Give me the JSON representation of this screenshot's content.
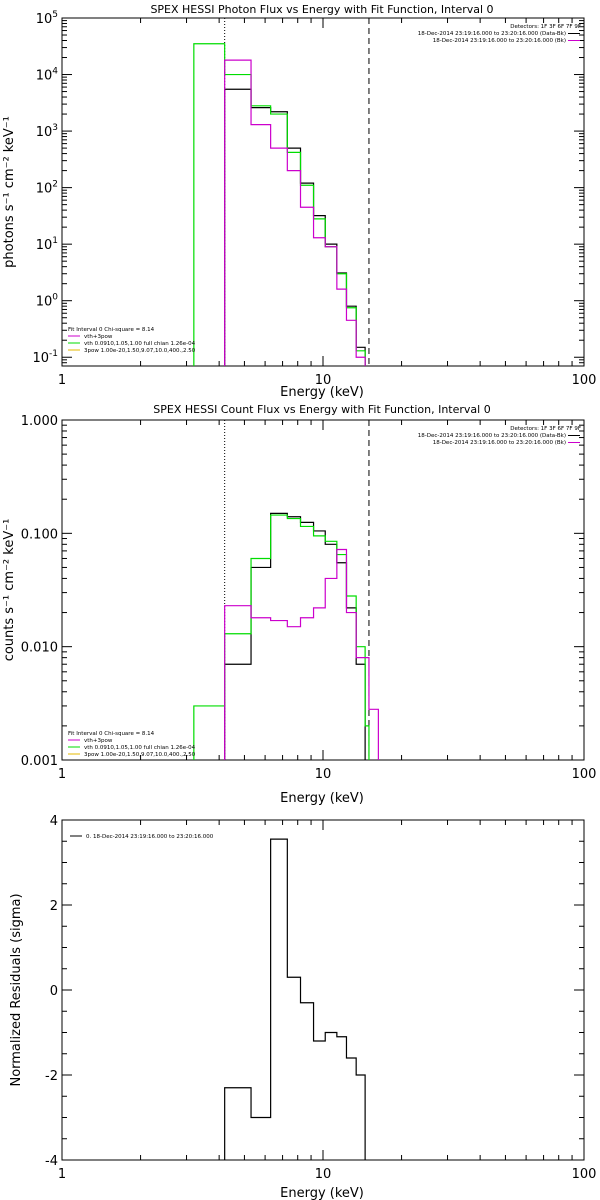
{
  "chart_data": [
    {
      "type": "line",
      "step": true,
      "title": "SPEX HESSI Photon Flux vs Energy with Fit Function, Interval 0",
      "xlabel": "Energy (keV)",
      "ylabel": "photons s⁻¹ cm⁻² keV⁻¹",
      "xscale": "log",
      "yscale": "log",
      "xlim": [
        1,
        100
      ],
      "ylim": [
        0.07,
        100000
      ],
      "xticks": [
        {
          "value": 1,
          "label": "1"
        },
        {
          "value": 10,
          "label": "10"
        },
        {
          "value": 100,
          "label": "100"
        }
      ],
      "yticks": [
        {
          "value": 0.1,
          "base": "10",
          "exp": "-1"
        },
        {
          "value": 1,
          "base": "10",
          "exp": "0"
        },
        {
          "value": 10,
          "base": "10",
          "exp": "1"
        },
        {
          "value": 100,
          "base": "10",
          "exp": "2"
        },
        {
          "value": 1000,
          "base": "10",
          "exp": "3"
        },
        {
          "value": 10000,
          "base": "10",
          "exp": "4"
        },
        {
          "value": 100000,
          "base": "10",
          "exp": "5"
        }
      ],
      "vlines": [
        {
          "x": 4.2,
          "style": "dotted"
        },
        {
          "x": 15.0,
          "style": "dashed"
        }
      ],
      "series": [
        {
          "color": "#000000",
          "edges": [
            4.2,
            5.3,
            6.3,
            7.3,
            8.2,
            9.2,
            10.2,
            11.3,
            12.3,
            13.4,
            14.5
          ],
          "values": [
            5500,
            2600,
            2200,
            500,
            120,
            32,
            10,
            3.1,
            0.8,
            0.15
          ]
        },
        {
          "color": "#00dd00",
          "edges": [
            3.2,
            4.2,
            5.3,
            6.3,
            7.3,
            8.2,
            9.2,
            10.2,
            11.3,
            12.3,
            13.4,
            14.5
          ],
          "values": [
            35000,
            10000,
            2800,
            2000,
            420,
            110,
            28,
            9,
            3,
            0.75,
            0.13
          ]
        },
        {
          "color": "#cc00cc",
          "edges": [
            4.2,
            5.3,
            6.3,
            7.3,
            8.2,
            9.2,
            10.2,
            11.3,
            12.3,
            13.4,
            14.5
          ],
          "values": [
            18000,
            1300,
            500,
            200,
            45,
            13,
            9,
            1.6,
            0.45,
            0.1
          ]
        }
      ],
      "info": {
        "line1": "Detectors: 1F 3F 6F 7F 9F",
        "line2": "18-Dec-2014 23:19:16.000 to 23:20:16.000 (Data-Bk)",
        "line3": "18-Dec-2014 23:19:16.000 to 23:20:16.000 (Bk)",
        "line2_color": "#000000",
        "line3_color": "#cc00cc"
      },
      "legend": {
        "header": "Fit Interval 0   Chi-square = 8.14",
        "items": [
          {
            "label": "vth+3pow",
            "color": "#cc00cc"
          },
          {
            "label": "vth 0.0910,1.05,1.00  full chian 1.26e-04",
            "color": "#00dd00"
          },
          {
            "label": "3pow 1.00e-20,1.50,9.07,10.0,400.,2.50",
            "color": "#e6b800"
          }
        ]
      }
    },
    {
      "type": "line",
      "step": true,
      "title": "SPEX HESSI Count Flux vs Energy with Fit Function, Interval 0",
      "xlabel": "Energy (keV)",
      "ylabel": "counts s⁻¹ cm⁻² keV⁻¹",
      "xscale": "log",
      "yscale": "log",
      "xlim": [
        1,
        100
      ],
      "ylim": [
        0.001,
        1.0
      ],
      "xticks": [
        {
          "value": 1,
          "label": "1"
        },
        {
          "value": 10,
          "label": "10"
        },
        {
          "value": 100,
          "label": "100"
        }
      ],
      "yticks": [
        {
          "value": 0.001,
          "label": "0.001"
        },
        {
          "value": 0.01,
          "label": "0.010"
        },
        {
          "value": 0.1,
          "label": "0.100"
        },
        {
          "value": 1.0,
          "label": "1.000"
        }
      ],
      "vlines": [
        {
          "x": 4.2,
          "style": "dotted"
        },
        {
          "x": 15.0,
          "style": "dashed"
        }
      ],
      "series": [
        {
          "color": "#000000",
          "edges": [
            4.2,
            5.3,
            6.3,
            7.3,
            8.2,
            9.2,
            10.2,
            11.3,
            12.3,
            13.4,
            14.5
          ],
          "values": [
            0.007,
            0.05,
            0.15,
            0.14,
            0.125,
            0.105,
            0.08,
            0.055,
            0.022,
            0.007
          ]
        },
        {
          "color": "#00dd00",
          "edges": [
            3.2,
            4.2,
            5.3,
            6.3,
            7.3,
            8.2,
            9.2,
            10.2,
            11.3,
            12.3,
            13.4,
            14.5,
            15.0
          ],
          "values": [
            0.003,
            0.013,
            0.06,
            0.145,
            0.135,
            0.115,
            0.095,
            0.085,
            0.065,
            0.028,
            0.01,
            0.002
          ]
        },
        {
          "color": "#cc00cc",
          "edges": [
            4.2,
            5.3,
            6.3,
            7.3,
            8.2,
            9.2,
            10.2,
            11.3,
            12.3,
            13.4,
            14.5,
            15.0,
            16.3
          ],
          "values": [
            0.023,
            0.018,
            0.017,
            0.015,
            0.018,
            0.022,
            0.04,
            0.072,
            0.02,
            0.008,
            0.008,
            0.0028
          ]
        }
      ],
      "info": {
        "line1": "Detectors: 1F 3F 6F 7F 9F",
        "line2": "18-Dec-2014 23:19:16.000 to 23:20:16.000 (Data-Bk)",
        "line3": "18-Dec-2014 23:19:16.000 to 23:20:16.000 (Bk)",
        "line2_color": "#000000",
        "line3_color": "#cc00cc"
      },
      "legend": {
        "header": "Fit Interval 0   Chi-square = 8.14",
        "items": [
          {
            "label": "vth+3pow",
            "color": "#cc00cc"
          },
          {
            "label": "vth 0.0910,1.05,1.00  full chian 1.26e-04",
            "color": "#00dd00"
          },
          {
            "label": "3pow 1.00e-20,1.50,9.07,10.0,400.,2.50",
            "color": "#e6b800"
          }
        ]
      }
    },
    {
      "type": "line",
      "step": true,
      "title": "",
      "xlabel": "Energy (keV)",
      "ylabel": "Normalized Residuals (sigma)",
      "xscale": "log",
      "yscale": "linear",
      "xlim": [
        1,
        100
      ],
      "ylim": [
        -4,
        4
      ],
      "xticks": [
        {
          "value": 1,
          "label": "1"
        },
        {
          "value": 10,
          "label": "10"
        },
        {
          "value": 100,
          "label": "100"
        }
      ],
      "yticks": [
        {
          "value": -4,
          "label": "-4"
        },
        {
          "value": -2,
          "label": "-2"
        },
        {
          "value": 0,
          "label": "0"
        },
        {
          "value": 2,
          "label": "2"
        },
        {
          "value": 4,
          "label": "4"
        }
      ],
      "vlines": [],
      "series": [
        {
          "color": "#000000",
          "edges": [
            4.2,
            5.3,
            6.3,
            7.3,
            8.2,
            9.2,
            10.2,
            11.3,
            12.3,
            13.4,
            14.5
          ],
          "values": [
            -2.3,
            -3.0,
            3.55,
            0.3,
            -0.3,
            -1.2,
            -1.0,
            -1.1,
            -1.6,
            -2.0
          ]
        }
      ],
      "legend": {
        "header": "",
        "items": [
          {
            "label": "0. 18-Dec-2014 23:19:16.000 to 23:20:16.000",
            "color": "#000000"
          }
        ]
      }
    }
  ]
}
